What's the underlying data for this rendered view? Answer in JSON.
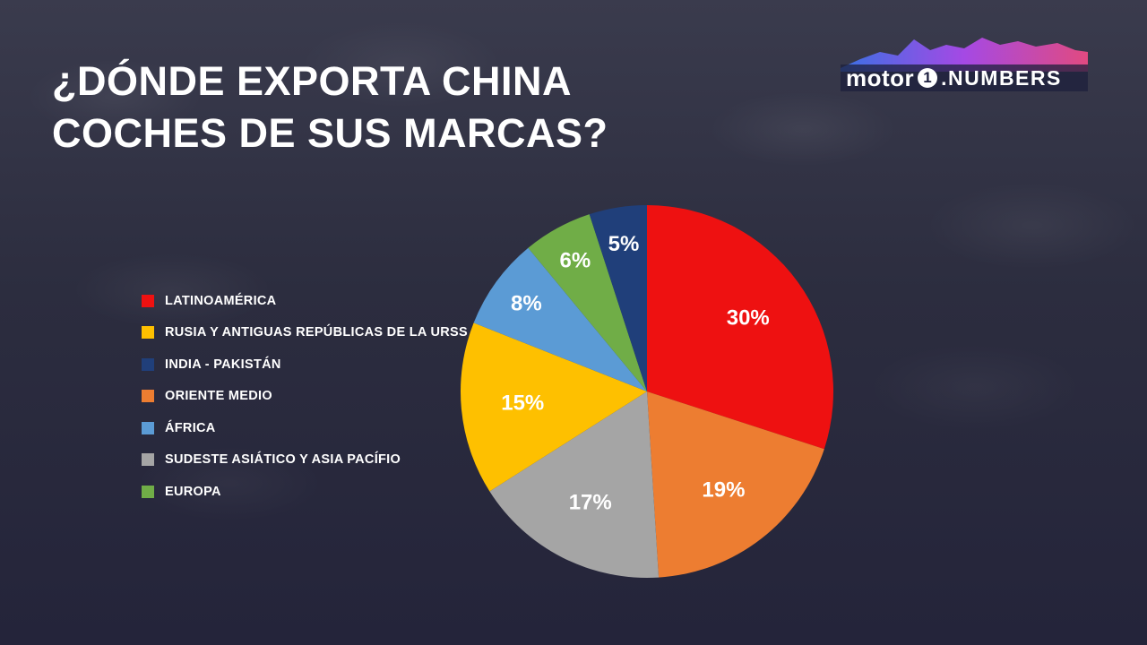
{
  "title": {
    "line1": "¿DÓNDE EXPORTA CHINA",
    "line2": "COCHES DE SUS MARCAS?"
  },
  "brand": {
    "motor": "motor",
    "one": "1",
    "numbers": ".NUMBERS"
  },
  "chart_data": {
    "type": "pie",
    "title": "¿DÓNDE EXPORTA CHINA COCHES DE SUS MARCAS?",
    "legend_position": "left",
    "legend": [
      {
        "name": "LATINOAMÉRICA",
        "color": "#ee1111"
      },
      {
        "name": "RUSIA Y ANTIGUAS REPÚBLICAS DE LA URSS",
        "color": "#fec000"
      },
      {
        "name": "INDIA - PAKISTÁN",
        "color": "#203f7a"
      },
      {
        "name": "ORIENTE MEDIO",
        "color": "#ed7d31"
      },
      {
        "name": "ÁFRICA",
        "color": "#5b9bd5"
      },
      {
        "name": "SUDESTE ASIÁTICO Y ASIA PACÍFIO",
        "color": "#a5a5a5"
      },
      {
        "name": "EUROPA",
        "color": "#70ad47"
      }
    ],
    "slices": [
      {
        "name": "LATINOAMÉRICA",
        "value": 30,
        "label": "30%",
        "color": "#ee1111"
      },
      {
        "name": "ORIENTE MEDIO",
        "value": 19,
        "label": "19%",
        "color": "#ed7d31"
      },
      {
        "name": "SUDESTE ASIÁTICO Y ASIA PACÍFIO",
        "value": 17,
        "label": "17%",
        "color": "#a5a5a5"
      },
      {
        "name": "RUSIA Y ANTIGUAS REPÚBLICAS DE LA URSS",
        "value": 15,
        "label": "15%",
        "color": "#fec000"
      },
      {
        "name": "ÁFRICA",
        "value": 8,
        "label": "8%",
        "color": "#5b9bd5"
      },
      {
        "name": "EUROPA",
        "value": 6,
        "label": "6%",
        "color": "#70ad47"
      },
      {
        "name": "INDIA - PAKISTÁN",
        "value": 5,
        "label": "5%",
        "color": "#203f7a"
      }
    ]
  }
}
